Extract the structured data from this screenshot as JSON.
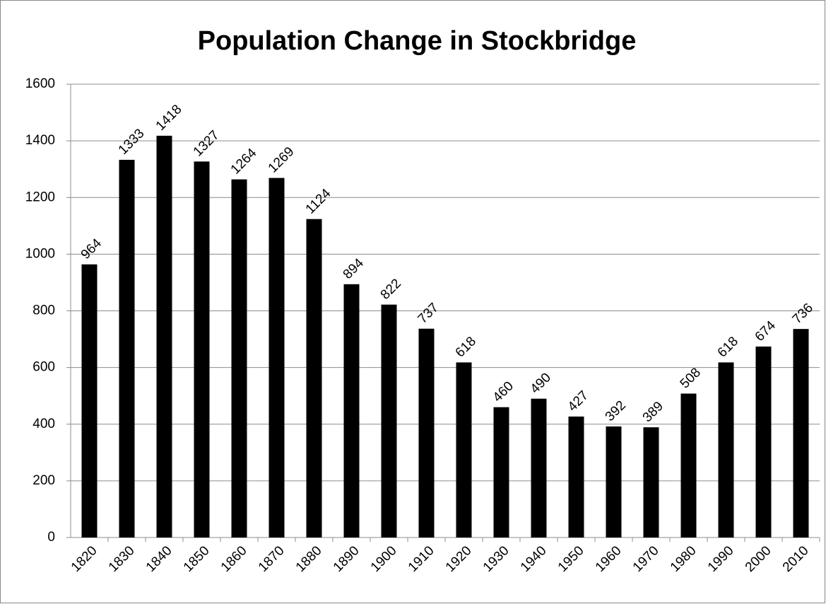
{
  "chart_data": {
    "type": "bar",
    "title": "Population Change in Stockbridge",
    "categories": [
      "1820",
      "1830",
      "1840",
      "1850",
      "1860",
      "1870",
      "1880",
      "1890",
      "1900",
      "1910",
      "1920",
      "1930",
      "1940",
      "1950",
      "1960",
      "1970",
      "1980",
      "1990",
      "2000",
      "2010"
    ],
    "values": [
      964,
      1333,
      1418,
      1327,
      1264,
      1269,
      1124,
      894,
      822,
      737,
      618,
      460,
      490,
      427,
      392,
      389,
      508,
      618,
      674,
      736
    ],
    "color": "#000000",
    "ylim": [
      0,
      1600
    ],
    "yticks": [
      0,
      200,
      400,
      600,
      800,
      1000,
      1200,
      1400,
      1600
    ],
    "grid": true
  }
}
